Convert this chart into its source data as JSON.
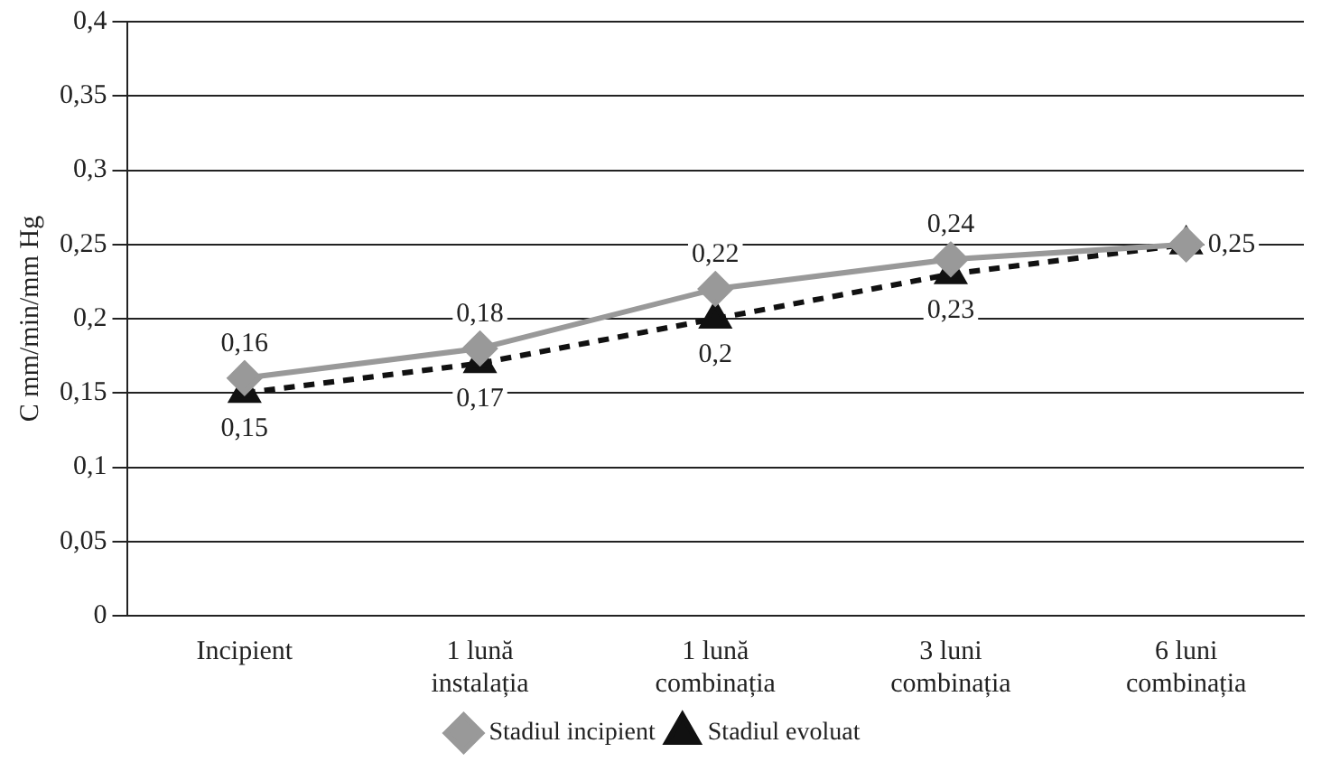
{
  "chart_data": {
    "type": "line",
    "ylabel": "C mm/min/mm Hg",
    "categories": [
      "Incipient",
      "1 lună instalația",
      "1 lună combinația",
      "3 luni combinația",
      "6 luni combinația"
    ],
    "series": [
      {
        "name": "Stadiul incipient",
        "color": "#999999",
        "values": [
          0.16,
          0.18,
          0.22,
          0.24,
          0.25
        ],
        "value_labels": [
          "0,16",
          "0,18",
          "0,22",
          "0,24",
          null
        ],
        "marker": "diamond",
        "line_style": "solid"
      },
      {
        "name": "Stadiul evoluat",
        "color": "#111111",
        "values": [
          0.15,
          0.17,
          0.2,
          0.23,
          0.25
        ],
        "value_labels": [
          "0,15",
          "0,17",
          "0,2",
          "0,23",
          "0,25"
        ],
        "marker": "triangle",
        "line_style": "dashed"
      }
    ],
    "ylim": [
      0,
      0.4
    ],
    "yticks": [
      {
        "value": 0,
        "label": "0"
      },
      {
        "value": 0.05,
        "label": "0,05"
      },
      {
        "value": 0.1,
        "label": "0,1"
      },
      {
        "value": 0.15,
        "label": "0,15"
      },
      {
        "value": 0.2,
        "label": "0,2"
      },
      {
        "value": 0.25,
        "label": "0,25"
      },
      {
        "value": 0.3,
        "label": "0,3"
      },
      {
        "value": 0.35,
        "label": "0,35"
      },
      {
        "value": 0.4,
        "label": "0,4"
      }
    ],
    "grid": "y",
    "legend": "bottom"
  }
}
